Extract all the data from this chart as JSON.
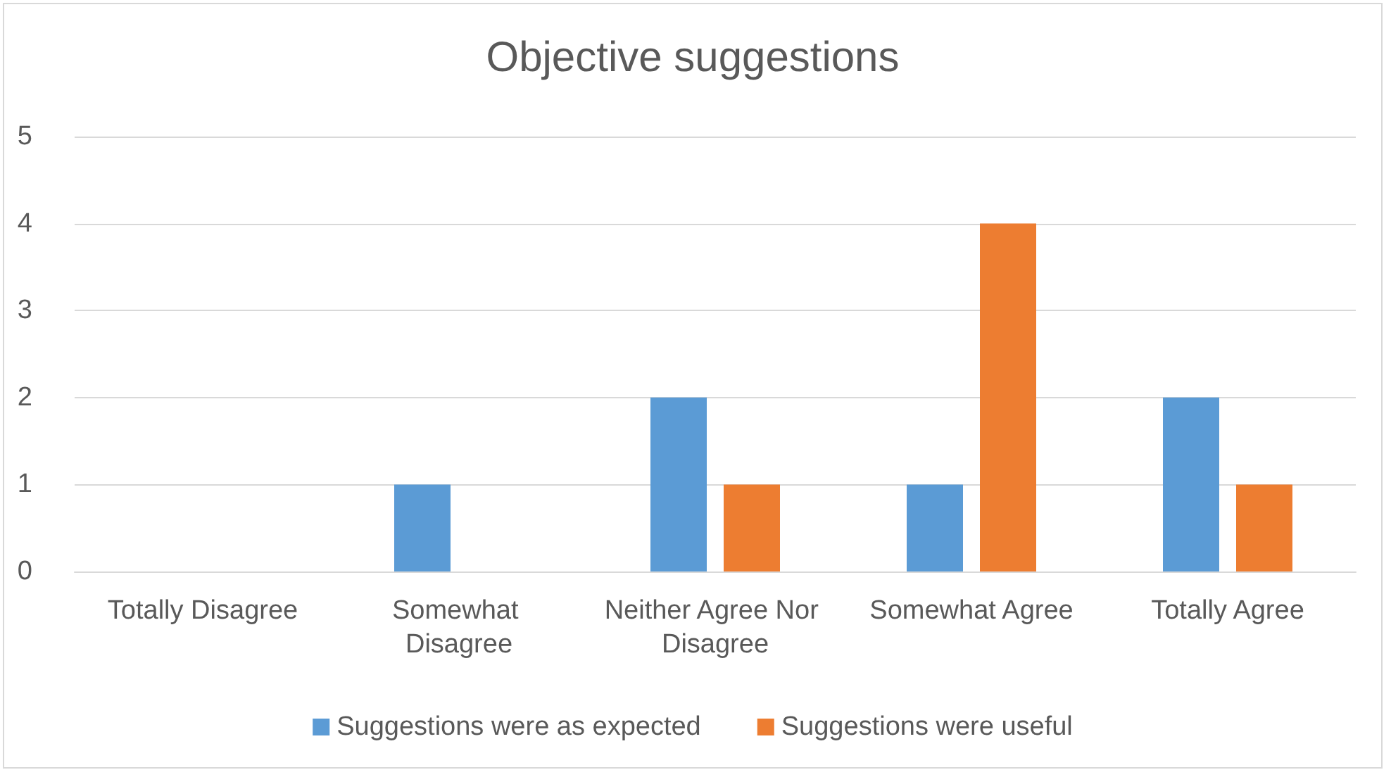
{
  "chart_data": {
    "type": "bar",
    "title": "Objective suggestions",
    "categories": [
      "Totally Disagree",
      "Somewhat Disagree",
      "Neither Agree Nor Disagree",
      "Somewhat Agree",
      "Totally Agree"
    ],
    "series": [
      {
        "name": "Suggestions were as expected",
        "color": "#5b9bd5",
        "values": [
          0,
          1,
          2,
          1,
          2
        ]
      },
      {
        "name": "Suggestions were useful",
        "color": "#ed7d31",
        "values": [
          0,
          0,
          1,
          4,
          1
        ]
      }
    ],
    "ylim": [
      0,
      5
    ],
    "yticks": [
      0,
      1,
      2,
      3,
      4,
      5
    ],
    "grid": "y",
    "legend": "bottom"
  }
}
